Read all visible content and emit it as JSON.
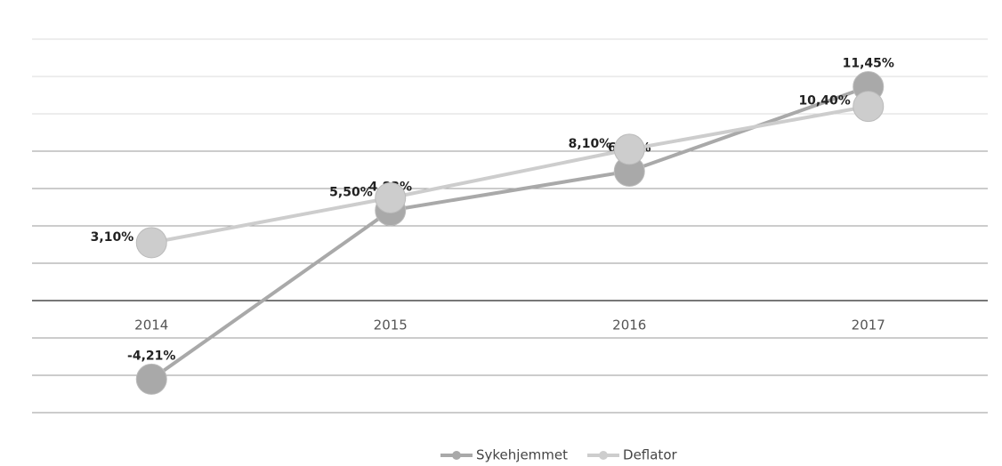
{
  "chart_data": {
    "type": "line",
    "categories": [
      "2014",
      "2015",
      "2016",
      "2017"
    ],
    "series": [
      {
        "name": "Sykehjemmet",
        "color": "#a9a9a9",
        "values": [
          -4.21,
          4.83,
          6.93,
          11.45
        ],
        "value_labels": [
          "-4,21%",
          "4,83%",
          "6,93%",
          "11,45%"
        ]
      },
      {
        "name": "Deflator",
        "color": "#cdcdcd",
        "values": [
          3.1,
          5.5,
          8.1,
          10.4
        ],
        "value_labels": [
          "3,10%",
          "5,50%",
          "8,10%",
          "10,40%"
        ]
      }
    ],
    "ylim": [
      -6,
      14
    ],
    "yticks": [
      -6,
      -4,
      -2,
      0,
      2,
      4,
      6,
      8,
      10,
      12,
      14
    ],
    "grid": true,
    "legend": "bottom"
  }
}
